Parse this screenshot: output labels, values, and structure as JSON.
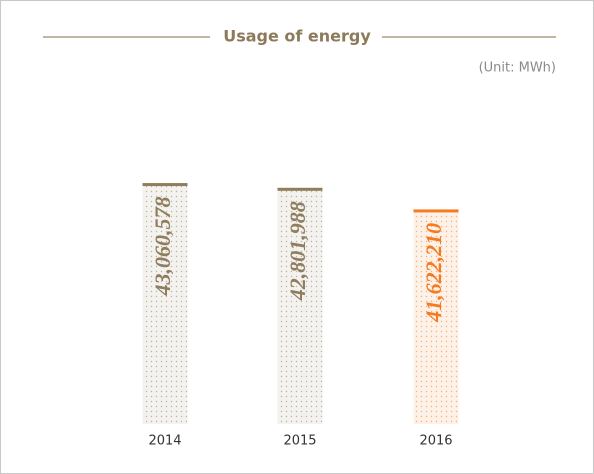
{
  "chart_data": {
    "type": "bar",
    "title": "Usage of energy",
    "subtitle": "(Unit: MWh)",
    "categories": [
      "2014",
      "2015",
      "2016"
    ],
    "values": [
      43060578,
      42801988,
      41622210
    ],
    "value_labels": [
      "43,060,578",
      "42,801,988",
      "41,622,210"
    ],
    "colors": [
      "#8f7d5e",
      "#8f7d5e",
      "#f47b20"
    ],
    "ylim": [
      30000000,
      45000000
    ]
  }
}
